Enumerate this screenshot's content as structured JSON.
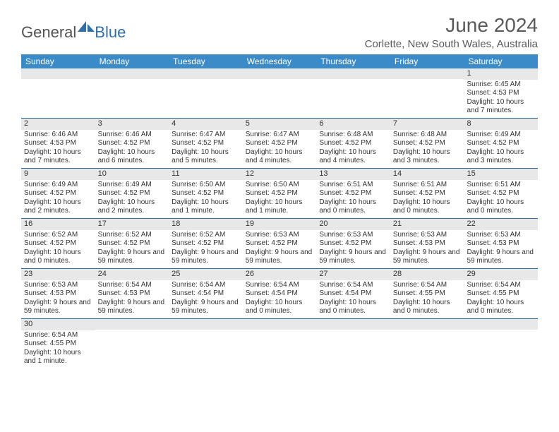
{
  "logo": {
    "part1": "General",
    "part2": "Blue"
  },
  "title": "June 2024",
  "location": "Corlette, New South Wales, Australia",
  "colors": {
    "header_bg": "#3b8bc9",
    "week_border": "#2e6da4",
    "daynum_bg": "#e8e8e8",
    "text": "#333333",
    "title_color": "#5a5a5a"
  },
  "day_names": [
    "Sunday",
    "Monday",
    "Tuesday",
    "Wednesday",
    "Thursday",
    "Friday",
    "Saturday"
  ],
  "weeks": [
    [
      null,
      null,
      null,
      null,
      null,
      null,
      {
        "d": "1",
        "sr": "6:45 AM",
        "ss": "4:53 PM",
        "dl": "10 hours and 7 minutes."
      }
    ],
    [
      {
        "d": "2",
        "sr": "6:46 AM",
        "ss": "4:53 PM",
        "dl": "10 hours and 7 minutes."
      },
      {
        "d": "3",
        "sr": "6:46 AM",
        "ss": "4:52 PM",
        "dl": "10 hours and 6 minutes."
      },
      {
        "d": "4",
        "sr": "6:47 AM",
        "ss": "4:52 PM",
        "dl": "10 hours and 5 minutes."
      },
      {
        "d": "5",
        "sr": "6:47 AM",
        "ss": "4:52 PM",
        "dl": "10 hours and 4 minutes."
      },
      {
        "d": "6",
        "sr": "6:48 AM",
        "ss": "4:52 PM",
        "dl": "10 hours and 4 minutes."
      },
      {
        "d": "7",
        "sr": "6:48 AM",
        "ss": "4:52 PM",
        "dl": "10 hours and 3 minutes."
      },
      {
        "d": "8",
        "sr": "6:49 AM",
        "ss": "4:52 PM",
        "dl": "10 hours and 3 minutes."
      }
    ],
    [
      {
        "d": "9",
        "sr": "6:49 AM",
        "ss": "4:52 PM",
        "dl": "10 hours and 2 minutes."
      },
      {
        "d": "10",
        "sr": "6:49 AM",
        "ss": "4:52 PM",
        "dl": "10 hours and 2 minutes."
      },
      {
        "d": "11",
        "sr": "6:50 AM",
        "ss": "4:52 PM",
        "dl": "10 hours and 1 minute."
      },
      {
        "d": "12",
        "sr": "6:50 AM",
        "ss": "4:52 PM",
        "dl": "10 hours and 1 minute."
      },
      {
        "d": "13",
        "sr": "6:51 AM",
        "ss": "4:52 PM",
        "dl": "10 hours and 0 minutes."
      },
      {
        "d": "14",
        "sr": "6:51 AM",
        "ss": "4:52 PM",
        "dl": "10 hours and 0 minutes."
      },
      {
        "d": "15",
        "sr": "6:51 AM",
        "ss": "4:52 PM",
        "dl": "10 hours and 0 minutes."
      }
    ],
    [
      {
        "d": "16",
        "sr": "6:52 AM",
        "ss": "4:52 PM",
        "dl": "10 hours and 0 minutes."
      },
      {
        "d": "17",
        "sr": "6:52 AM",
        "ss": "4:52 PM",
        "dl": "9 hours and 59 minutes."
      },
      {
        "d": "18",
        "sr": "6:52 AM",
        "ss": "4:52 PM",
        "dl": "9 hours and 59 minutes."
      },
      {
        "d": "19",
        "sr": "6:53 AM",
        "ss": "4:52 PM",
        "dl": "9 hours and 59 minutes."
      },
      {
        "d": "20",
        "sr": "6:53 AM",
        "ss": "4:52 PM",
        "dl": "9 hours and 59 minutes."
      },
      {
        "d": "21",
        "sr": "6:53 AM",
        "ss": "4:53 PM",
        "dl": "9 hours and 59 minutes."
      },
      {
        "d": "22",
        "sr": "6:53 AM",
        "ss": "4:53 PM",
        "dl": "9 hours and 59 minutes."
      }
    ],
    [
      {
        "d": "23",
        "sr": "6:53 AM",
        "ss": "4:53 PM",
        "dl": "9 hours and 59 minutes."
      },
      {
        "d": "24",
        "sr": "6:54 AM",
        "ss": "4:53 PM",
        "dl": "9 hours and 59 minutes."
      },
      {
        "d": "25",
        "sr": "6:54 AM",
        "ss": "4:54 PM",
        "dl": "9 hours and 59 minutes."
      },
      {
        "d": "26",
        "sr": "6:54 AM",
        "ss": "4:54 PM",
        "dl": "10 hours and 0 minutes."
      },
      {
        "d": "27",
        "sr": "6:54 AM",
        "ss": "4:54 PM",
        "dl": "10 hours and 0 minutes."
      },
      {
        "d": "28",
        "sr": "6:54 AM",
        "ss": "4:55 PM",
        "dl": "10 hours and 0 minutes."
      },
      {
        "d": "29",
        "sr": "6:54 AM",
        "ss": "4:55 PM",
        "dl": "10 hours and 0 minutes."
      }
    ],
    [
      {
        "d": "30",
        "sr": "6:54 AM",
        "ss": "4:55 PM",
        "dl": "10 hours and 1 minute."
      },
      null,
      null,
      null,
      null,
      null,
      null
    ]
  ],
  "labels": {
    "sunrise": "Sunrise:",
    "sunset": "Sunset:",
    "daylight": "Daylight:"
  }
}
